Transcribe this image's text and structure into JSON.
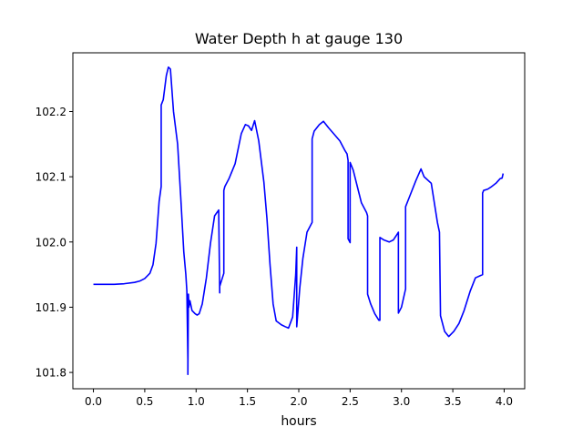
{
  "chart_data": {
    "type": "line",
    "title": "Water Depth h at gauge 130",
    "xlabel": "hours",
    "ylabel": "",
    "xlim": [
      -0.2,
      4.2
    ],
    "ylim": [
      101.775,
      102.29
    ],
    "xticks": [
      0.0,
      0.5,
      1.0,
      1.5,
      2.0,
      2.5,
      3.0,
      3.5,
      4.0
    ],
    "xtick_labels": [
      "0.0",
      "0.5",
      "1.0",
      "1.5",
      "2.0",
      "2.5",
      "3.0",
      "3.5",
      "4.0"
    ],
    "yticks": [
      101.8,
      101.9,
      102.0,
      102.1,
      102.2
    ],
    "ytick_labels": [
      "101.8",
      "101.9",
      "102.0",
      "102.1",
      "102.2"
    ],
    "grid": false,
    "series": [
      {
        "color": "#0000ff",
        "x": [
          0.0,
          0.2,
          0.3,
          0.4,
          0.45,
          0.5,
          0.55,
          0.58,
          0.61,
          0.64,
          0.66,
          0.66,
          0.68,
          0.71,
          0.73,
          0.75,
          0.78,
          0.82,
          0.85,
          0.88,
          0.9,
          0.91,
          0.92,
          0.92,
          0.925,
          0.93,
          0.94,
          0.96,
          0.99,
          1.01,
          1.03,
          1.06,
          1.1,
          1.14,
          1.18,
          1.22,
          1.23,
          1.23,
          1.27,
          1.27,
          1.28,
          1.32,
          1.38,
          1.44,
          1.48,
          1.51,
          1.54,
          1.57,
          1.61,
          1.66,
          1.69,
          1.72,
          1.75,
          1.78,
          1.83,
          1.87,
          1.9,
          1.94,
          1.97,
          1.98,
          1.98,
          2.01,
          2.04,
          2.08,
          2.13,
          2.13,
          2.15,
          2.2,
          2.24,
          2.29,
          2.34,
          2.4,
          2.45,
          2.47,
          2.48,
          2.48,
          2.5,
          2.5,
          2.53,
          2.57,
          2.61,
          2.66,
          2.67,
          2.67,
          2.7,
          2.74,
          2.78,
          2.79,
          2.79,
          2.83,
          2.88,
          2.92,
          2.95,
          2.97,
          2.97,
          3.0,
          3.04,
          3.04,
          3.08,
          3.14,
          3.19,
          3.22,
          3.29,
          3.35,
          3.37,
          3.38,
          3.38,
          3.42,
          3.46,
          3.51,
          3.56,
          3.61,
          3.67,
          3.72,
          3.79,
          3.79,
          3.8,
          3.84,
          3.87,
          3.92,
          3.96,
          3.98,
          3.99
        ],
        "values": [
          101.935,
          101.935,
          101.936,
          101.938,
          101.94,
          101.944,
          101.952,
          101.965,
          101.998,
          102.062,
          102.085,
          102.21,
          102.218,
          102.255,
          102.268,
          102.265,
          102.2,
          102.15,
          102.07,
          101.985,
          101.95,
          101.925,
          101.82,
          101.797,
          101.92,
          101.9,
          101.91,
          101.895,
          101.89,
          101.888,
          101.89,
          101.905,
          101.945,
          101.998,
          102.04,
          102.049,
          101.922,
          101.932,
          101.952,
          102.079,
          102.085,
          102.097,
          102.12,
          102.166,
          102.18,
          102.178,
          102.171,
          102.186,
          102.155,
          102.092,
          102.036,
          101.965,
          101.905,
          101.879,
          101.873,
          101.87,
          101.868,
          101.885,
          101.95,
          101.992,
          101.87,
          101.93,
          101.975,
          102.015,
          102.03,
          102.158,
          102.17,
          102.18,
          102.185,
          102.175,
          102.166,
          102.155,
          102.14,
          102.135,
          102.125,
          102.005,
          101.999,
          102.122,
          102.11,
          102.085,
          102.06,
          102.045,
          102.04,
          101.92,
          101.905,
          101.89,
          101.88,
          101.88,
          102.007,
          102.003,
          102.0,
          102.003,
          102.01,
          102.015,
          101.891,
          101.9,
          101.928,
          102.054,
          102.07,
          102.094,
          102.112,
          102.1,
          102.09,
          102.03,
          102.015,
          101.888,
          101.887,
          101.863,
          101.855,
          101.863,
          101.875,
          101.895,
          101.925,
          101.945,
          101.95,
          102.075,
          102.079,
          102.081,
          102.084,
          102.09,
          102.097,
          102.098,
          102.105
        ]
      }
    ]
  }
}
